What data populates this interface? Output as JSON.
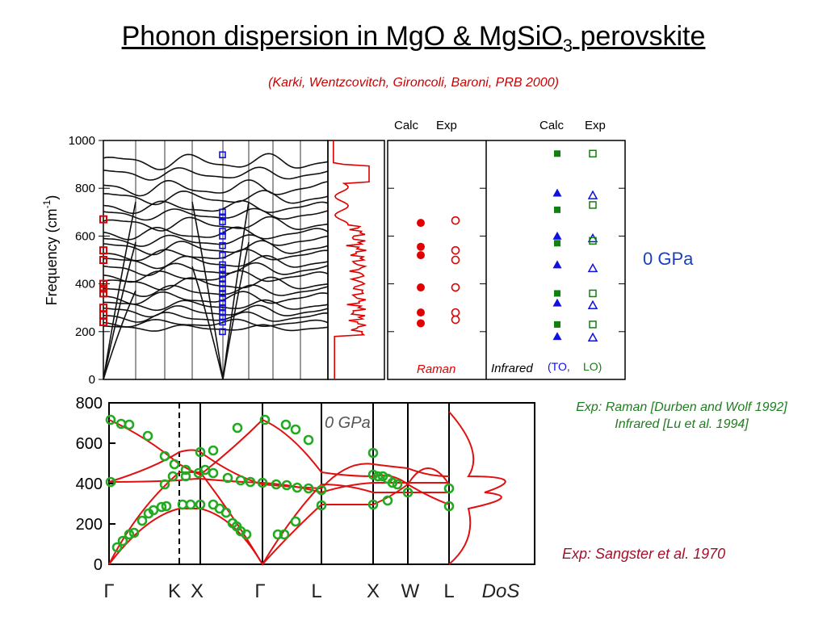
{
  "title": {
    "main": "Phonon dispersion in MgO & MgSiO",
    "sub": "3",
    "tail": " perovskite"
  },
  "citation": "(Karki, Wentzcovitch, Gironcoli, Baroni,  PRB 2000)",
  "pressure_label": "0 GPa",
  "exp_refs": {
    "line1": "Exp: Raman [Durben and Wolf 1992]",
    "line2": "Infrared [Lu et al. 1994]"
  },
  "sangster_ref": "Exp: Sangster et al. 1970",
  "colors": {
    "calc": "#000000",
    "raman": "#e00000",
    "infrared_to": "#1010e0",
    "infrared_lo": "#108010",
    "dos": "#e00000",
    "exp_green": "#22aa22"
  },
  "chart_data": [
    {
      "type": "line",
      "name_label": "MgSiO3 perovskite dispersion",
      "ylabel": "Frequency (cm",
      "ylabel_sup": "-1",
      "ylabel_tail": ")",
      "ylim": [
        0,
        1000
      ],
      "yticks": [
        "0",
        "200",
        "400",
        "600",
        "800",
        "1000"
      ],
      "raman_exp_gamma": [
        240,
        270,
        300,
        360,
        380,
        400,
        500,
        540,
        670
      ],
      "blue_exp_x": [
        940,
        700,
        680,
        660,
        620,
        600,
        560,
        520,
        480,
        460,
        440,
        420,
        400,
        380,
        360,
        340,
        320,
        300,
        280,
        260,
        240,
        200
      ]
    },
    {
      "type": "scatter",
      "panel": "raman_infrared",
      "ylim": [
        0,
        1000
      ],
      "headers_raman": [
        "Calc",
        "Exp"
      ],
      "headers_ir": [
        "Calc",
        "Exp"
      ],
      "raman_calc": [
        235,
        280,
        385,
        520,
        555,
        655
      ],
      "raman_exp": [
        250,
        280,
        385,
        500,
        540,
        665
      ],
      "ir_calc_to": [
        180,
        320,
        480,
        600,
        780
      ],
      "ir_exp_to": [
        175,
        310,
        465,
        590,
        770
      ],
      "ir_calc_lo": [
        230,
        360,
        570,
        710,
        945
      ],
      "ir_exp_lo": [
        230,
        360,
        580,
        730,
        945
      ],
      "label_raman": "Raman",
      "label_infrared": "Infrared",
      "label_to": "(TO,",
      "label_lo": "LO)"
    },
    {
      "type": "line",
      "panel": "mgo_dispersion",
      "ylim": [
        0,
        800
      ],
      "yticks": [
        "0",
        "200",
        "400",
        "600",
        "800"
      ],
      "xticks": [
        "Γ",
        "K",
        "X",
        "Γ",
        "L",
        "X",
        "W",
        "L",
        "DoS"
      ],
      "annotation": "0 GPa",
      "exp_points": [
        [
          0.0,
          720
        ],
        [
          0.04,
          700
        ],
        [
          0.09,
          690
        ],
        [
          0.19,
          645
        ],
        [
          0.29,
          560
        ],
        [
          0.36,
          520
        ],
        [
          0.42,
          470
        ],
        [
          0.46,
          440
        ],
        [
          0.52,
          420
        ],
        [
          0.66,
          400
        ],
        [
          0.1,
          85
        ],
        [
          0.14,
          110
        ],
        [
          0.18,
          145
        ],
        [
          0.22,
          200
        ],
        [
          0.26,
          245
        ],
        [
          0.31,
          265
        ],
        [
          0.36,
          290
        ],
        [
          0.1,
          410
        ],
        [
          0.16,
          420
        ],
        [
          0.22,
          405
        ]
      ]
    }
  ]
}
